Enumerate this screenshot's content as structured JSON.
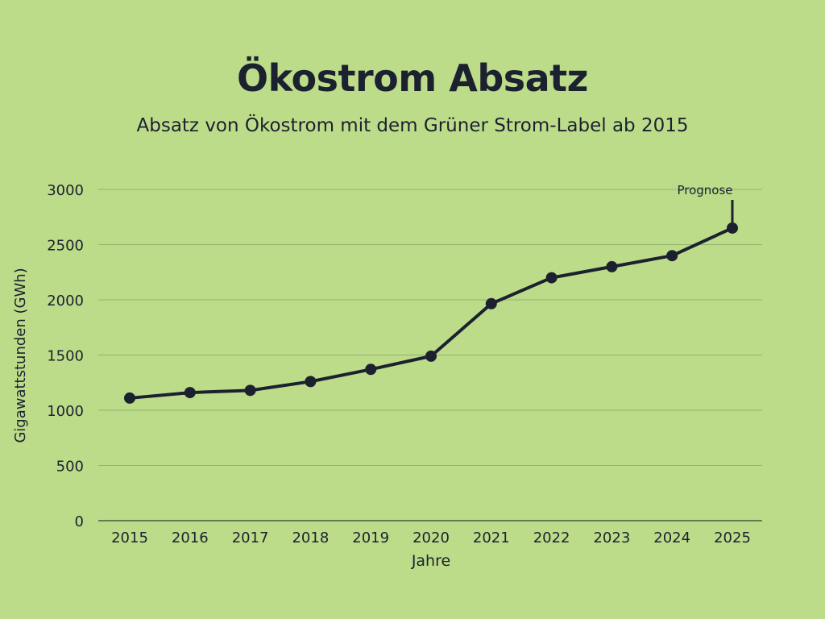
{
  "colors": {
    "background": "#bddc8a",
    "line": "#1c2130",
    "grid": "#8fb56b"
  },
  "chart_data": {
    "type": "line",
    "title": "Ökostrom Absatz",
    "subtitle": "Absatz von Ökostrom mit dem Grüner Strom-Label ab 2015",
    "xlabel": "Jahre",
    "ylabel": "Gigawattstunden (GWh)",
    "categories": [
      "2015",
      "2016",
      "2017",
      "2018",
      "2019",
      "2020",
      "2021",
      "2022",
      "2023",
      "2024",
      "2025"
    ],
    "series": [
      {
        "values": [
          1110,
          1160,
          1180,
          1260,
          1370,
          1490,
          1965,
          2200,
          2300,
          2400,
          2650
        ]
      }
    ],
    "ylim": [
      0,
      3000
    ],
    "yticks": [
      0,
      500,
      1000,
      1500,
      2000,
      2500,
      3000
    ],
    "grid": true,
    "annotations": [
      {
        "text": "Prognose",
        "category": "2025"
      }
    ]
  }
}
